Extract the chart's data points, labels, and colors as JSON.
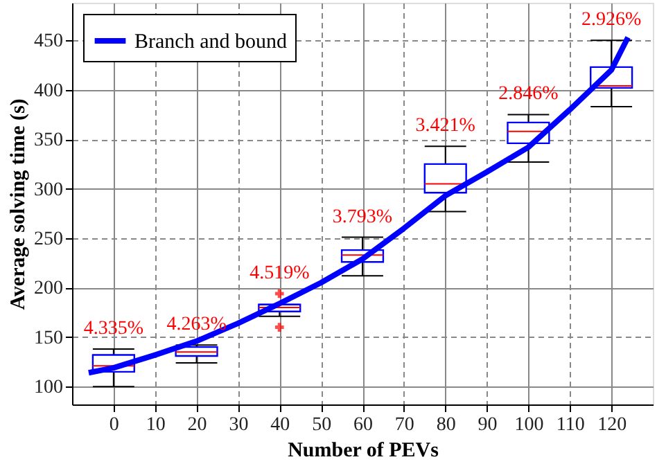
{
  "chart_data": {
    "type": "box",
    "xlabel": "Number of PEVs",
    "ylabel": "Average solving time (s)",
    "x": [
      0,
      20,
      40,
      60,
      80,
      100,
      120
    ],
    "series": [
      {
        "color": "#0000ff",
        "boxes": [
          {
            "low": 100,
            "q1": 115,
            "median": 121,
            "q3": 132,
            "high": 138
          },
          {
            "low": 124,
            "q1": 131,
            "median": 135,
            "q3": 140,
            "high": 142
          },
          {
            "low": 171,
            "q1": 176,
            "median": 180,
            "q3": 183,
            "high": 183,
            "outliers": [
              194,
              160
            ]
          },
          {
            "low": 212,
            "q1": 226,
            "median": 233,
            "q3": 238,
            "high": 251
          },
          {
            "low": 277,
            "q1": 296,
            "median": 305,
            "q3": 325,
            "high": 343
          },
          {
            "low": 327,
            "q1": 346,
            "median": 358,
            "q3": 367,
            "high": 375
          },
          {
            "low": 383,
            "q1": 402,
            "median": 404,
            "q3": 423,
            "high": 450
          }
        ]
      },
      {
        "type": "line",
        "name": "Branch and bound",
        "color": "#0000ff",
        "x": [
          -6,
          0,
          10,
          20,
          30,
          40,
          50,
          60,
          70,
          80,
          90,
          100,
          110,
          120,
          124
        ],
        "values": [
          114,
          119,
          132,
          146,
          164,
          184,
          205,
          229,
          260,
          293,
          317,
          342,
          380,
          420,
          453
        ]
      }
    ],
    "annotations": [
      "4.335%",
      "4.263%",
      "4.519%",
      "3.793%",
      "3.421%",
      "2.846%",
      "2.926%"
    ],
    "xlim": [
      -10,
      130
    ],
    "xticks": [
      0,
      10,
      20,
      30,
      40,
      50,
      60,
      70,
      80,
      90,
      100,
      110,
      120
    ],
    "ylim": [
      82,
      488
    ],
    "yticks": [
      100,
      150,
      200,
      250,
      300,
      350,
      400,
      450
    ],
    "grid": true,
    "legend": "top left"
  }
}
